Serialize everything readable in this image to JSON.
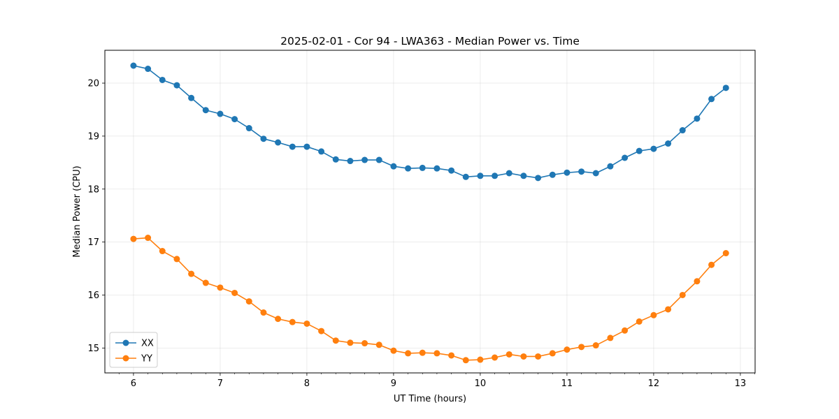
{
  "chart_data": {
    "type": "line",
    "title": "2025-02-01 - Cor 94 - LWA363 - Median Power vs. Time",
    "xlabel": "UT Time (hours)",
    "ylabel": "Median Power (CPU)",
    "xlim": [
      5.67,
      13.17
    ],
    "ylim": [
      14.53,
      20.62
    ],
    "xticks": [
      6,
      7,
      8,
      9,
      10,
      11,
      12,
      13
    ],
    "yticks": [
      15,
      16,
      17,
      18,
      19,
      20
    ],
    "grid": true,
    "legend_position": "lower-left",
    "x": [
      6.0,
      6.1667,
      6.3333,
      6.5,
      6.6667,
      6.8333,
      7.0,
      7.1667,
      7.3333,
      7.5,
      7.6667,
      7.8333,
      8.0,
      8.1667,
      8.3333,
      8.5,
      8.6667,
      8.8333,
      9.0,
      9.1667,
      9.3333,
      9.5,
      9.6667,
      9.8333,
      10.0,
      10.1667,
      10.3333,
      10.5,
      10.6667,
      10.8333,
      11.0,
      11.1667,
      11.3333,
      11.5,
      11.6667,
      11.8333,
      12.0,
      12.1667,
      12.3333,
      12.5,
      12.6667,
      12.8333
    ],
    "series": [
      {
        "name": "XX",
        "color": "#1f77b4",
        "values": [
          20.33,
          20.27,
          20.06,
          19.96,
          19.72,
          19.49,
          19.42,
          19.32,
          19.15,
          18.95,
          18.88,
          18.8,
          18.8,
          18.71,
          18.56,
          18.53,
          18.55,
          18.55,
          18.43,
          18.39,
          18.4,
          18.39,
          18.35,
          18.23,
          18.25,
          18.25,
          18.3,
          18.25,
          18.21,
          18.27,
          18.31,
          18.33,
          18.3,
          18.43,
          18.59,
          18.72,
          18.76,
          18.86,
          19.11,
          19.33,
          19.7,
          19.91
        ]
      },
      {
        "name": "YY",
        "color": "#ff7f0e",
        "values": [
          17.06,
          17.08,
          16.83,
          16.68,
          16.4,
          16.23,
          16.14,
          16.04,
          15.88,
          15.67,
          15.55,
          15.49,
          15.46,
          15.32,
          15.14,
          15.1,
          15.09,
          15.06,
          14.95,
          14.9,
          14.91,
          14.9,
          14.86,
          14.77,
          14.78,
          14.82,
          14.88,
          14.84,
          14.84,
          14.9,
          14.97,
          15.02,
          15.05,
          15.19,
          15.33,
          15.5,
          15.62,
          15.73,
          16.0,
          16.26,
          16.57,
          16.79
        ]
      }
    ]
  }
}
